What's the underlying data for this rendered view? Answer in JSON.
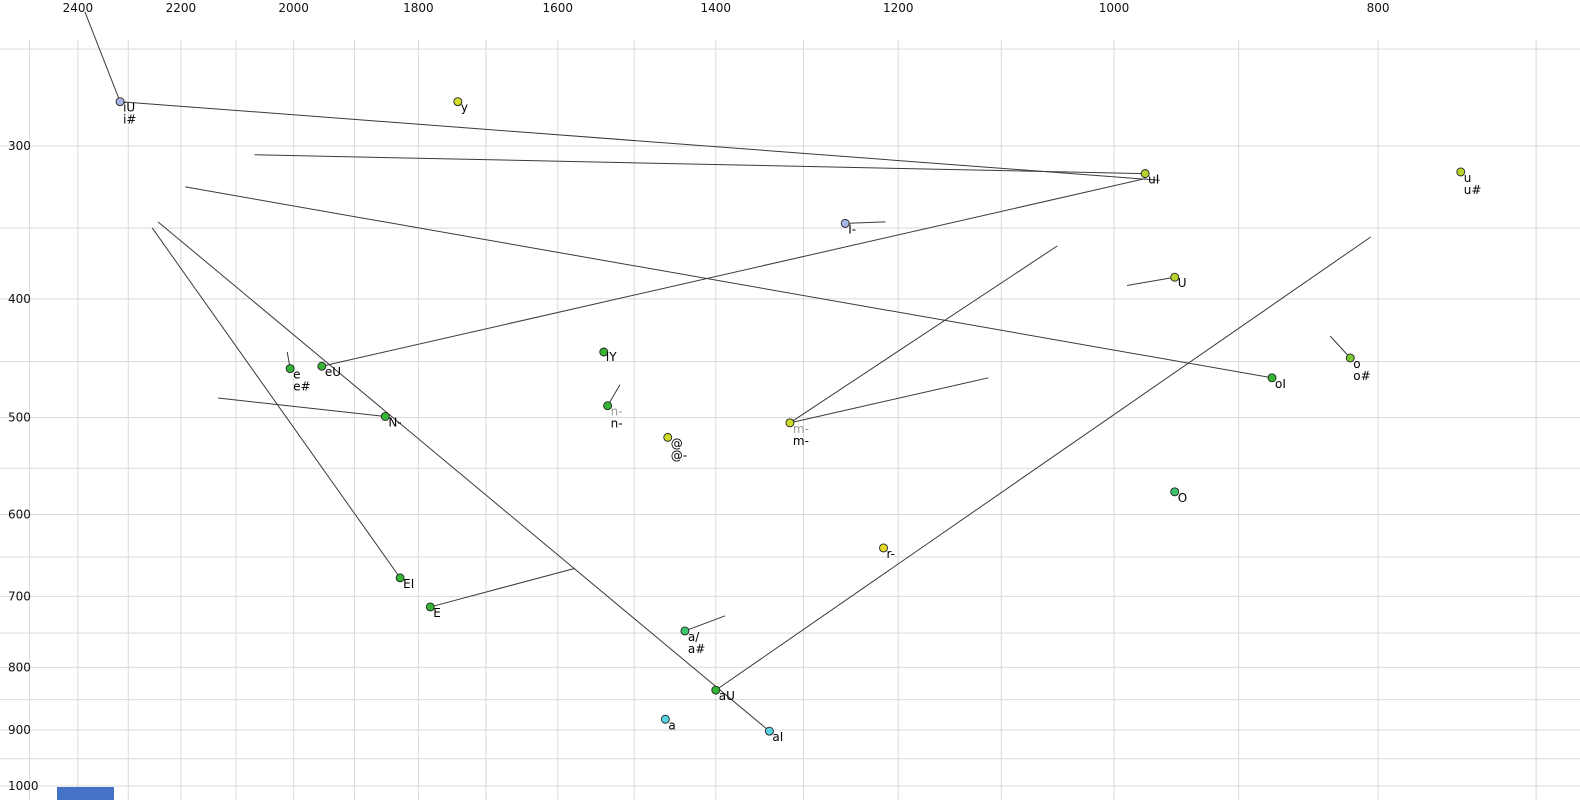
{
  "chart_data": {
    "type": "scatter",
    "x_axis": {
      "scale": "log",
      "direction": "reversed",
      "tick_labels": [
        2400,
        2200,
        2000,
        1800,
        1600,
        1400,
        1200,
        1000,
        800
      ],
      "gridlines": [
        2500,
        2400,
        2300,
        2200,
        2100,
        2000,
        1900,
        1800,
        1700,
        1600,
        1500,
        1400,
        1300,
        1200,
        1100,
        1000,
        900,
        800,
        700
      ]
    },
    "y_axis": {
      "scale": "log",
      "direction": "down",
      "tick_labels": [
        300,
        400,
        500,
        600,
        700,
        800,
        900,
        1000
      ],
      "gridlines": [
        250,
        300,
        350,
        400,
        450,
        500,
        550,
        600,
        650,
        700,
        750,
        800,
        850,
        900,
        950,
        1000
      ]
    },
    "points": [
      {
        "labels": [
          {
            "text": "iU"
          },
          {
            "text": "i#"
          }
        ],
        "f2": 2316,
        "f1": 276,
        "color": "#a9b6e8"
      },
      {
        "labels": [
          {
            "text": "y"
          }
        ],
        "f2": 1741,
        "f1": 276,
        "color": "#d4dd2b"
      },
      {
        "labels": [
          {
            "text": "uI"
          }
        ],
        "f2": 974,
        "f1": 316,
        "color": "#b9d32e"
      },
      {
        "labels": [
          {
            "text": "u"
          },
          {
            "text": "u#"
          }
        ],
        "f2": 746,
        "f1": 315,
        "color": "#b9d32e"
      },
      {
        "labels": [
          {
            "text": "I-"
          }
        ],
        "f2": 1255,
        "f1": 347,
        "color": "#a9b6e8"
      },
      {
        "labels": [
          {
            "text": "U"
          }
        ],
        "f2": 950,
        "f1": 384,
        "color": "#b9d32e"
      },
      {
        "labels": [
          {
            "text": "I"
          },
          {
            "text": "Y"
          }
        ],
        "label_layout": "inline",
        "f2": 1539,
        "f1": 442,
        "color": "#35b535"
      },
      {
        "labels": [
          {
            "text": "e"
          },
          {
            "text": "e#"
          }
        ],
        "f2": 2006,
        "f1": 456,
        "color": "#35b535"
      },
      {
        "labels": [
          {
            "text": "eU"
          }
        ],
        "f2": 1953,
        "f1": 454,
        "color": "#35b535"
      },
      {
        "labels": [
          {
            "text": "o"
          },
          {
            "text": "o#"
          }
        ],
        "f2": 819,
        "f1": 447,
        "color": "#7ac832"
      },
      {
        "labels": [
          {
            "text": "oI"
          }
        ],
        "f2": 875,
        "f1": 464,
        "color": "#35b535"
      },
      {
        "labels": [
          {
            "text": "n-",
            "color": "gray"
          },
          {
            "text": "n-"
          }
        ],
        "f2": 1534,
        "f1": 489,
        "color": "#35b535"
      },
      {
        "labels": [
          {
            "text": "@"
          },
          {
            "text": "@-"
          }
        ],
        "f2": 1458,
        "f1": 519,
        "color": "#cdd92b"
      },
      {
        "labels": [
          {
            "text": "m-",
            "color": "gray"
          },
          {
            "text": "m-"
          }
        ],
        "f2": 1315,
        "f1": 505,
        "color": "#cdd92b"
      },
      {
        "labels": [
          {
            "text": "N-"
          }
        ],
        "f2": 1851,
        "f1": 499,
        "color": "#35b535"
      },
      {
        "labels": [
          {
            "text": "O"
          }
        ],
        "f2": 950,
        "f1": 575,
        "color": "#3ec46a"
      },
      {
        "labels": [
          {
            "text": "r-"
          }
        ],
        "f2": 1215,
        "f1": 639,
        "color": "#e3d82a"
      },
      {
        "labels": [
          {
            "text": "EI"
          }
        ],
        "f2": 1828,
        "f1": 676,
        "color": "#35b535"
      },
      {
        "labels": [
          {
            "text": "E"
          }
        ],
        "f2": 1782,
        "f1": 714,
        "color": "#35b535"
      },
      {
        "labels": [
          {
            "text": "a/"
          },
          {
            "text": "a#"
          }
        ],
        "f2": 1437,
        "f1": 747,
        "color": "#3ec46a"
      },
      {
        "labels": [
          {
            "text": "aU"
          }
        ],
        "f2": 1400,
        "f1": 835,
        "color": "#35b535"
      },
      {
        "labels": [
          {
            "text": "a"
          }
        ],
        "f2": 1461,
        "f1": 882,
        "color": "#57d3e3"
      },
      {
        "labels": [
          {
            "text": "aI"
          }
        ],
        "f2": 1338,
        "f1": 902,
        "color": "#57d3e3"
      }
    ],
    "trajectories": [
      {
        "from": [
          2316,
          276
        ],
        "to": [
          2386,
          233
        ]
      },
      {
        "from": [
          2316,
          276
        ],
        "to": [
          962,
          320
        ]
      },
      {
        "from": [
          974,
          316
        ],
        "to": [
          2067,
          305
        ]
      },
      {
        "from": [
          1953,
          454
        ],
        "to": [
          974,
          319
        ]
      },
      {
        "from": [
          875,
          464
        ],
        "to": [
          2192,
          324
        ]
      },
      {
        "from": [
          1828,
          676
        ],
        "to": [
          2254,
          350
        ]
      },
      {
        "from": [
          1338,
          902
        ],
        "to": [
          2243,
          346
        ]
      },
      {
        "from": [
          1400,
          835
        ],
        "to": [
          805,
          356
        ]
      },
      {
        "from": [
          1315,
          505
        ],
        "to": [
          1049,
          362
        ]
      },
      {
        "from": [
          1315,
          505
        ],
        "to": [
          1112,
          464
        ]
      },
      {
        "from": [
          1255,
          347
        ],
        "to": [
          1213,
          346
        ]
      },
      {
        "from": [
          950,
          384
        ],
        "to": [
          989,
          390
        ]
      },
      {
        "from": [
          819,
          447
        ],
        "to": [
          833,
          429
        ]
      },
      {
        "from": [
          2006,
          456
        ],
        "to": [
          2011,
          442
        ]
      },
      {
        "from": [
          1534,
          489
        ],
        "to": [
          1518,
          470
        ]
      },
      {
        "from": [
          1851,
          499
        ],
        "to": [
          2132,
          482
        ]
      },
      {
        "from": [
          1782,
          714
        ],
        "to": [
          1577,
          664
        ]
      },
      {
        "from": [
          1437,
          747
        ],
        "to": [
          1389,
          726
        ]
      }
    ]
  },
  "styles": {
    "background": "#ffffff",
    "grid_color": "#d9d9d9",
    "line_color": "#3a3a3a",
    "axis_text_color": "#111111",
    "label_color": "#000000",
    "gray_label_color": "#9a9a9a",
    "point_stroke": "#222222"
  },
  "decor": {
    "bottom_left_bar_color": "#4472c4"
  }
}
